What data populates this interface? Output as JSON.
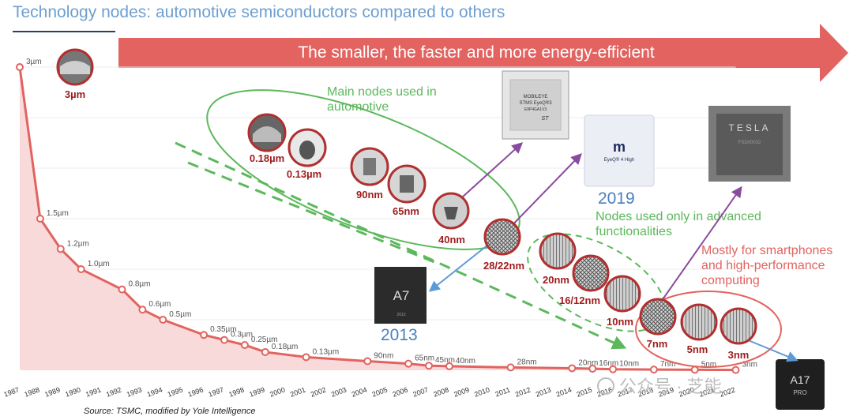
{
  "title": "Technology nodes: automotive semiconductors compared to others",
  "banner": "The smaller, the faster and more energy-efficient",
  "source": "Source: TSMC, modified by Yole Intelligence",
  "watermark": "公众号 · 芝能",
  "chip_labels": {
    "eyeq3_brand": "MOBILEYE",
    "eyeq3_name": "STMS EyeQ®3",
    "eyeq3_code": "E9P4GA1V3",
    "eyeq3_maker": "ST",
    "eyeq4_logo": "m",
    "eyeq4_name": "EyeQ® 4 High",
    "tesla_logo": "TESLA",
    "tesla_code": "FSD00032",
    "a7_logo": "A7",
    "a7_code": "2013",
    "a17_logo": "A17",
    "a17_sub": "PRO"
  },
  "annotations": {
    "main_auto": [
      "Main nodes used in",
      "automotive"
    ],
    "advanced": [
      "Nodes used only in advanced",
      "functionalities"
    ],
    "smartphones": [
      "Mostly for smartphones",
      "and high-performance",
      "computing"
    ],
    "year_2019": "2019",
    "year_2013": "2013"
  },
  "colors": {
    "line": "#e2635f",
    "area": "#f9dada",
    "banner": "#e2635f",
    "green": "#5cb85c",
    "purple": "#8a4a9e",
    "blue": "#5b9bd5",
    "title": "#6f9fd0",
    "node_label": "#9e1c1c"
  },
  "chart_data": {
    "type": "area",
    "title": "Technology nodes: automotive semiconductors compared to others",
    "xlabel": "",
    "ylabel": "",
    "grid": true,
    "x": [
      1987,
      1988,
      1989,
      1990,
      1991,
      1992,
      1993,
      1994,
      1995,
      1996,
      1997,
      1998,
      1999,
      2000,
      2001,
      2002,
      2003,
      2004,
      2005,
      2006,
      2007,
      2008,
      2009,
      2010,
      2011,
      2012,
      2013,
      2014,
      2015,
      2016,
      2017,
      2018,
      2019,
      2020,
      2021,
      2022
    ],
    "series": [
      {
        "points": [
          {
            "x": 1987,
            "y": 3.0,
            "label": "3µm"
          },
          {
            "x": 1988,
            "y": 1.5,
            "label": "1.5µm"
          },
          {
            "x": 1989,
            "y": 1.2,
            "label": "1.2µm"
          },
          {
            "x": 1990,
            "y": 1.0,
            "label": "1.0µm"
          },
          {
            "x": 1992,
            "y": 0.8,
            "label": "0.8µm"
          },
          {
            "x": 1993,
            "y": 0.6,
            "label": "0.6µm"
          },
          {
            "x": 1994,
            "y": 0.5,
            "label": "0.5µm"
          },
          {
            "x": 1996,
            "y": 0.35,
            "label": "0.35µm"
          },
          {
            "x": 1997,
            "y": 0.3,
            "label": "0.3µm"
          },
          {
            "x": 1998,
            "y": 0.25,
            "label": "0.25µm"
          },
          {
            "x": 1999,
            "y": 0.18,
            "label": "0.18µm"
          },
          {
            "x": 2001,
            "y": 0.13,
            "label": "0.13µm"
          },
          {
            "x": 2004,
            "y": 0.09,
            "label": "90nm"
          },
          {
            "x": 2006,
            "y": 0.065,
            "label": "65nm"
          },
          {
            "x": 2007,
            "y": 0.045,
            "label": "45nm"
          },
          {
            "x": 2008,
            "y": 0.04,
            "label": "40nm"
          },
          {
            "x": 2011,
            "y": 0.028,
            "label": "28nm"
          },
          {
            "x": 2014,
            "y": 0.02,
            "label": "20nm"
          },
          {
            "x": 2015,
            "y": 0.016,
            "label": "16nm"
          },
          {
            "x": 2016,
            "y": 0.01,
            "label": "10nm"
          },
          {
            "x": 2018,
            "y": 0.007,
            "label": "7nm"
          },
          {
            "x": 2020,
            "y": 0.005,
            "label": "5nm"
          },
          {
            "x": 2022,
            "y": 0.003,
            "label": "3nm"
          }
        ]
      }
    ],
    "nodes": [
      {
        "label": "3µm",
        "group": "legacy"
      },
      {
        "label": "0.18µm",
        "group": "automotive"
      },
      {
        "label": "0.13µm",
        "group": "automotive"
      },
      {
        "label": "90nm",
        "group": "automotive"
      },
      {
        "label": "65nm",
        "group": "automotive"
      },
      {
        "label": "40nm",
        "group": "automotive"
      },
      {
        "label": "28/22nm",
        "group": "automotive"
      },
      {
        "label": "20nm",
        "group": "advanced"
      },
      {
        "label": "16/12nm",
        "group": "advanced"
      },
      {
        "label": "10nm",
        "group": "advanced"
      },
      {
        "label": "7nm",
        "group": "smartphone"
      },
      {
        "label": "5nm",
        "group": "smartphone"
      },
      {
        "label": "3nm",
        "group": "smartphone"
      }
    ]
  }
}
